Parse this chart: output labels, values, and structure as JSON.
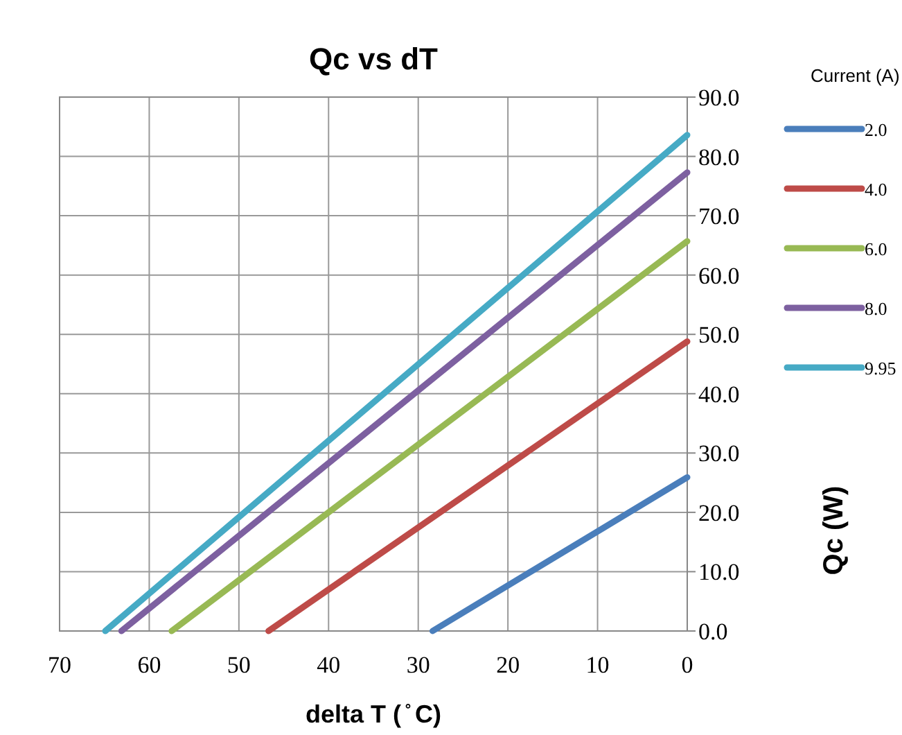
{
  "chart_data": {
    "type": "line",
    "title": "Qc vs dT",
    "xlabel": "delta T ( ̊ C)",
    "ylabel": "Qc (W)",
    "legend_title": "Current (A)",
    "xlim": [
      70,
      0
    ],
    "xticks": [
      70,
      60,
      50,
      40,
      30,
      20,
      10,
      0
    ],
    "ylim": [
      0,
      90
    ],
    "yticks": [
      {
        "value": 0,
        "label": "0.0"
      },
      {
        "value": 10,
        "label": "10.0"
      },
      {
        "value": 20,
        "label": "20.0"
      },
      {
        "value": 30,
        "label": "30.0"
      },
      {
        "value": 40,
        "label": "40.0"
      },
      {
        "value": 50,
        "label": "50.0"
      },
      {
        "value": 60,
        "label": "60.0"
      },
      {
        "value": 70,
        "label": "70.0"
      },
      {
        "value": 80,
        "label": "80.0"
      },
      {
        "value": 90,
        "label": "90.0"
      }
    ],
    "grid": true,
    "legend": "right",
    "marker": "none",
    "line_style": "solid",
    "series": [
      {
        "name": "2.0",
        "color": "#4a7ebb",
        "x": [
          28.4,
          0
        ],
        "values": [
          0,
          25.9
        ]
      },
      {
        "name": "4.0",
        "color": "#be4b48",
        "x": [
          46.7,
          0
        ],
        "values": [
          0,
          48.8
        ]
      },
      {
        "name": "6.0",
        "color": "#98b954",
        "x": [
          57.5,
          0
        ],
        "values": [
          0,
          65.7
        ]
      },
      {
        "name": "8.0",
        "color": "#7d60a0",
        "x": [
          63.1,
          0
        ],
        "values": [
          0,
          77.3
        ]
      },
      {
        "name": "9.95",
        "color": "#46aac5",
        "x": [
          64.9,
          0
        ],
        "values": [
          0,
          83.6
        ]
      }
    ]
  }
}
